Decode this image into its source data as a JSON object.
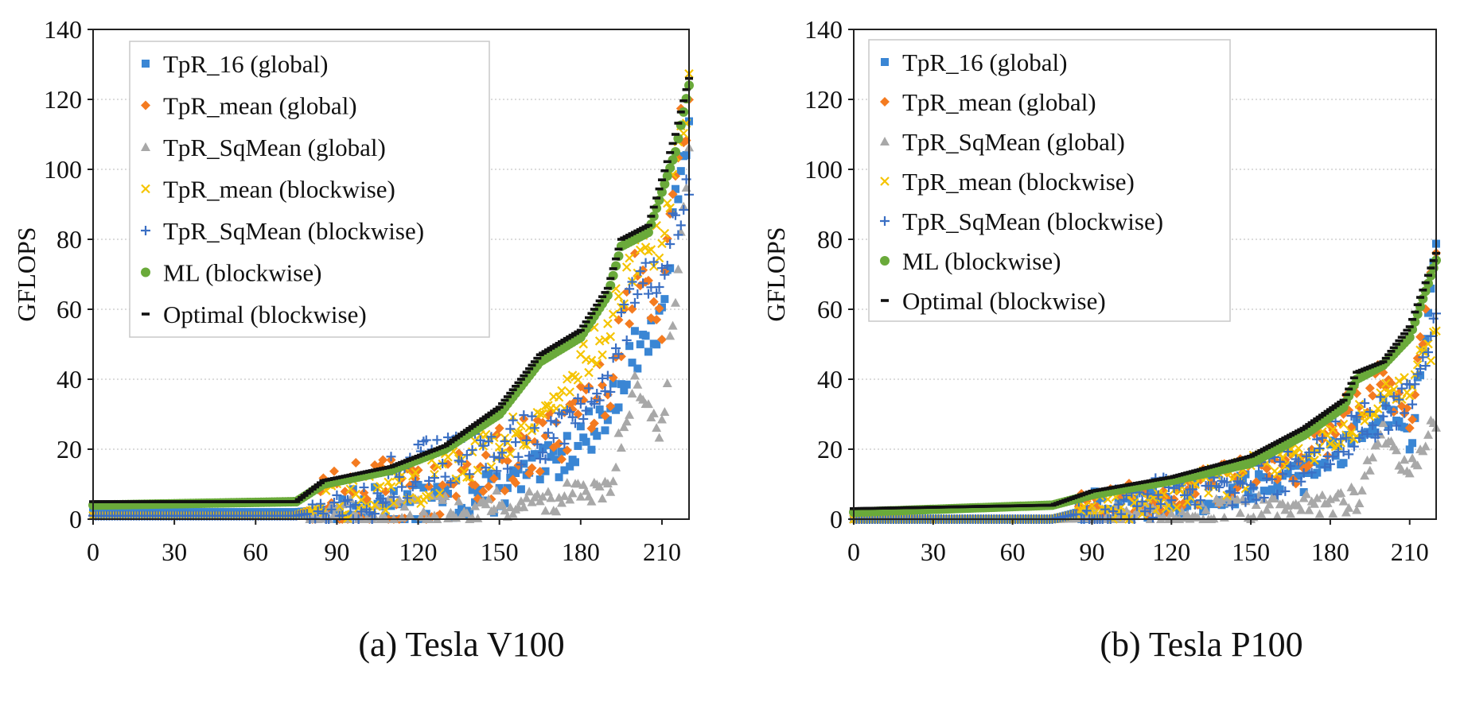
{
  "figure": {
    "captions": [
      "(a) Tesla V100",
      "(b) Tesla P100"
    ]
  },
  "chart_data": [
    {
      "type": "scatter",
      "title": "",
      "caption": "(a) Tesla V100",
      "xlabel": "",
      "ylabel": "GFLOPS",
      "xlim": [
        0,
        220
      ],
      "ylim": [
        0,
        140
      ],
      "xticks": [
        0,
        30,
        60,
        90,
        120,
        150,
        180,
        210
      ],
      "yticks": [
        0,
        20,
        40,
        60,
        80,
        100,
        120,
        140
      ],
      "grid": "horizontal dotted",
      "legend_position": "top-left",
      "series": [
        {
          "name": "TpR_16 (global)",
          "marker": "square",
          "color": "#3a86d4",
          "anchors": [
            [
              0,
              2
            ],
            [
              75,
              2
            ],
            [
              90,
              3
            ],
            [
              120,
              4
            ],
            [
              150,
              8
            ],
            [
              170,
              16
            ],
            [
              190,
              30
            ],
            [
              200,
              48
            ],
            [
              210,
              55
            ],
            [
              215,
              90
            ],
            [
              220,
              115
            ]
          ],
          "jitter": 6,
          "jitter_start": 90
        },
        {
          "name": "TpR_mean (global)",
          "marker": "diamond",
          "color": "#f47b20",
          "anchors": [
            [
              0,
              1
            ],
            [
              75,
              1
            ],
            [
              90,
              6
            ],
            [
              120,
              8
            ],
            [
              150,
              16
            ],
            [
              170,
              22
            ],
            [
              190,
              38
            ],
            [
              200,
              70
            ],
            [
              210,
              58
            ],
            [
              215,
              100
            ],
            [
              220,
              120
            ]
          ],
          "jitter": 10,
          "jitter_start": 80
        },
        {
          "name": "TpR_SqMean (global)",
          "marker": "triangle",
          "color": "#a8a8a8",
          "anchors": [
            [
              0,
              1
            ],
            [
              75,
              1
            ],
            [
              100,
              2
            ],
            [
              130,
              3
            ],
            [
              160,
              5
            ],
            [
              190,
              8
            ],
            [
              200,
              40
            ],
            [
              210,
              25
            ],
            [
              220,
              104
            ]
          ],
          "jitter": 4,
          "jitter_start": 80
        },
        {
          "name": "TpR_mean (blockwise)",
          "marker": "x",
          "color": "#f5c400",
          "anchors": [
            [
              0,
              1
            ],
            [
              75,
              1
            ],
            [
              90,
              5
            ],
            [
              120,
              10
            ],
            [
              150,
              22
            ],
            [
              170,
              32
            ],
            [
              190,
              55
            ],
            [
              200,
              74
            ],
            [
              210,
              80
            ],
            [
              220,
              122
            ]
          ],
          "jitter": 6,
          "jitter_start": 85
        },
        {
          "name": "TpR_SqMean (blockwise)",
          "marker": "plus",
          "color": "#3a6fc4",
          "anchors": [
            [
              0,
              1
            ],
            [
              75,
              1
            ],
            [
              90,
              3
            ],
            [
              120,
              14
            ],
            [
              150,
              20
            ],
            [
              170,
              26
            ],
            [
              190,
              40
            ],
            [
              200,
              65
            ],
            [
              210,
              72
            ],
            [
              220,
              95
            ]
          ],
          "jitter": 8,
          "jitter_start": 80
        },
        {
          "name": "ML (blockwise)",
          "marker": "circle",
          "color": "#6aaa3a",
          "anchors": [
            [
              0,
              4
            ],
            [
              75,
              5
            ],
            [
              85,
              10
            ],
            [
              110,
              14
            ],
            [
              130,
              20
            ],
            [
              150,
              30
            ],
            [
              165,
              45
            ],
            [
              180,
              52
            ],
            [
              190,
              64
            ],
            [
              195,
              78
            ],
            [
              205,
              82
            ],
            [
              215,
              105
            ],
            [
              220,
              124
            ]
          ],
          "jitter": 1,
          "jitter_start": 0
        },
        {
          "name": "Optimal (blockwise)",
          "marker": "dash",
          "color": "#111111",
          "anchors": [
            [
              0,
              5
            ],
            [
              75,
              5
            ],
            [
              85,
              11
            ],
            [
              110,
              15
            ],
            [
              130,
              21
            ],
            [
              150,
              32
            ],
            [
              165,
              47
            ],
            [
              180,
              54
            ],
            [
              190,
              66
            ],
            [
              195,
              80
            ],
            [
              205,
              84
            ],
            [
              215,
              110
            ],
            [
              220,
              126
            ]
          ],
          "jitter": 1,
          "jitter_start": 0
        }
      ]
    },
    {
      "type": "scatter",
      "title": "",
      "caption": "(b) Tesla P100",
      "xlabel": "",
      "ylabel": "GFLOPS",
      "xlim": [
        0,
        220
      ],
      "ylim": [
        0,
        140
      ],
      "xticks": [
        0,
        30,
        60,
        90,
        120,
        150,
        180,
        210
      ],
      "yticks": [
        0,
        20,
        40,
        60,
        80,
        100,
        120,
        140
      ],
      "grid": "horizontal dotted",
      "legend_position": "top-left",
      "series": [
        {
          "name": "TpR_16 (global)",
          "marker": "square",
          "color": "#3a86d4",
          "anchors": [
            [
              0,
              0
            ],
            [
              75,
              0
            ],
            [
              90,
              3
            ],
            [
              120,
              5
            ],
            [
              150,
              10
            ],
            [
              170,
              12
            ],
            [
              190,
              24
            ],
            [
              200,
              32
            ],
            [
              210,
              20
            ],
            [
              220,
              78
            ]
          ],
          "jitter": 5,
          "jitter_start": 85
        },
        {
          "name": "TpR_mean (global)",
          "marker": "diamond",
          "color": "#f47b20",
          "anchors": [
            [
              0,
              0
            ],
            [
              75,
              0
            ],
            [
              100,
              4
            ],
            [
              130,
              8
            ],
            [
              150,
              12
            ],
            [
              170,
              16
            ],
            [
              190,
              34
            ],
            [
              200,
              40
            ],
            [
              210,
              28
            ],
            [
              220,
              78
            ]
          ],
          "jitter": 6,
          "jitter_start": 85
        },
        {
          "name": "TpR_SqMean (global)",
          "marker": "triangle",
          "color": "#a8a8a8",
          "anchors": [
            [
              0,
              0
            ],
            [
              75,
              0
            ],
            [
              120,
              1
            ],
            [
              150,
              3
            ],
            [
              180,
              5
            ],
            [
              190,
              6
            ],
            [
              200,
              24
            ],
            [
              210,
              14
            ],
            [
              220,
              30
            ]
          ],
          "jitter": 4,
          "jitter_start": 90
        },
        {
          "name": "TpR_mean (blockwise)",
          "marker": "x",
          "color": "#f5c400",
          "anchors": [
            [
              0,
              0
            ],
            [
              75,
              0
            ],
            [
              100,
              4
            ],
            [
              130,
              9
            ],
            [
              150,
              14
            ],
            [
              170,
              20
            ],
            [
              190,
              28
            ],
            [
              200,
              34
            ],
            [
              210,
              40
            ],
            [
              220,
              50
            ]
          ],
          "jitter": 5,
          "jitter_start": 85
        },
        {
          "name": "TpR_SqMean (blockwise)",
          "marker": "plus",
          "color": "#3a6fc4",
          "anchors": [
            [
              0,
              0
            ],
            [
              75,
              0
            ],
            [
              100,
              4
            ],
            [
              130,
              8
            ],
            [
              150,
              10
            ],
            [
              170,
              16
            ],
            [
              190,
              26
            ],
            [
              200,
              30
            ],
            [
              210,
              34
            ],
            [
              220,
              57
            ]
          ],
          "jitter": 6,
          "jitter_start": 85
        },
        {
          "name": "ML (blockwise)",
          "marker": "circle",
          "color": "#6aaa3a",
          "anchors": [
            [
              0,
              2
            ],
            [
              75,
              4
            ],
            [
              90,
              7
            ],
            [
              120,
              11
            ],
            [
              150,
              16
            ],
            [
              170,
              24
            ],
            [
              185,
              32
            ],
            [
              190,
              40
            ],
            [
              200,
              44
            ],
            [
              210,
              52
            ],
            [
              220,
              74
            ]
          ],
          "jitter": 1,
          "jitter_start": 0
        },
        {
          "name": "Optimal (blockwise)",
          "marker": "dash",
          "color": "#111111",
          "anchors": [
            [
              0,
              3
            ],
            [
              75,
              4
            ],
            [
              90,
              8
            ],
            [
              120,
              12
            ],
            [
              150,
              18
            ],
            [
              170,
              26
            ],
            [
              185,
              34
            ],
            [
              190,
              42
            ],
            [
              200,
              45
            ],
            [
              210,
              55
            ],
            [
              220,
              76
            ]
          ],
          "jitter": 1,
          "jitter_start": 0
        }
      ]
    }
  ]
}
